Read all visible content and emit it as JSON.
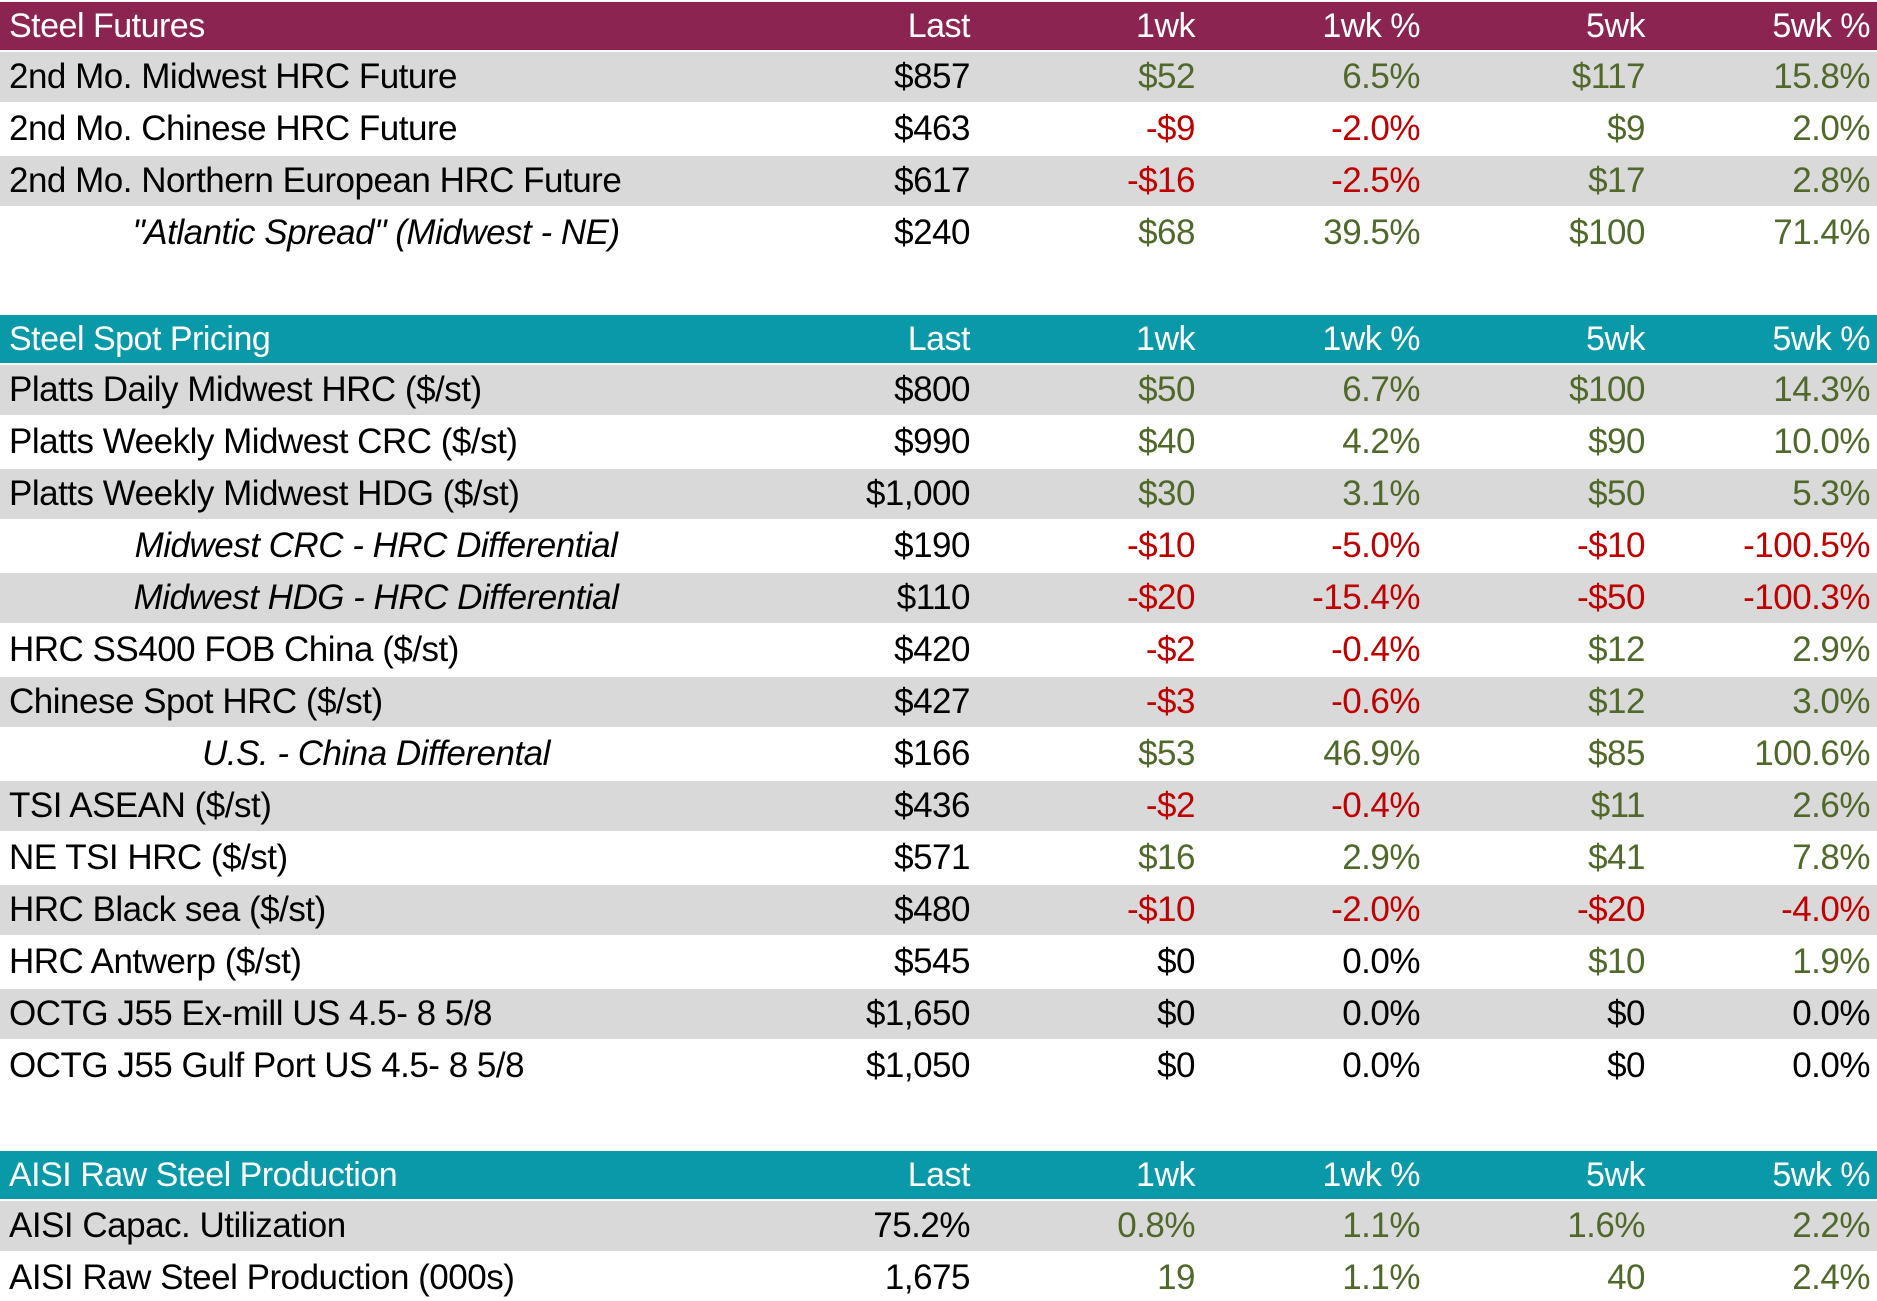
{
  "table": {
    "columns": [
      "Last",
      "1wk",
      "1wk %",
      "5wk",
      "5wk %"
    ],
    "colors": {
      "header_maroon": "#8B2450",
      "header_teal": "#0999A8",
      "stripe_gray": "#D9D9D9",
      "positive_green": "#51682B",
      "negative_red": "#C00000",
      "neutral_black": "#000000"
    },
    "sections": [
      {
        "title": "Steel Futures",
        "theme": "maroon",
        "rows": [
          {
            "label": "2nd Mo. Midwest HRC Future",
            "italic": false,
            "cells": [
              [
                "$857",
                "flat"
              ],
              [
                "$52",
                "pos"
              ],
              [
                "6.5%",
                "pos"
              ],
              [
                "$117",
                "pos"
              ],
              [
                "15.8%",
                "pos"
              ]
            ]
          },
          {
            "label": "2nd Mo. Chinese HRC Future",
            "italic": false,
            "cells": [
              [
                "$463",
                "flat"
              ],
              [
                "-$9",
                "neg"
              ],
              [
                "-2.0%",
                "neg"
              ],
              [
                "$9",
                "pos"
              ],
              [
                "2.0%",
                "pos"
              ]
            ]
          },
          {
            "label": "2nd Mo. Northern European HRC Future",
            "italic": false,
            "cells": [
              [
                "$617",
                "flat"
              ],
              [
                "-$16",
                "neg"
              ],
              [
                "-2.5%",
                "neg"
              ],
              [
                "$17",
                "pos"
              ],
              [
                "2.8%",
                "pos"
              ]
            ]
          },
          {
            "label": "\"Atlantic Spread\" (Midwest - NE)",
            "italic": true,
            "cells": [
              [
                "$240",
                "flat"
              ],
              [
                "$68",
                "pos"
              ],
              [
                "39.5%",
                "pos"
              ],
              [
                "$100",
                "pos"
              ],
              [
                "71.4%",
                "pos"
              ]
            ]
          }
        ]
      },
      {
        "title": "Steel Spot Pricing",
        "theme": "teal",
        "rows": [
          {
            "label": "Platts Daily Midwest HRC ($/st)",
            "italic": false,
            "cells": [
              [
                "$800",
                "flat"
              ],
              [
                "$50",
                "pos"
              ],
              [
                "6.7%",
                "pos"
              ],
              [
                "$100",
                "pos"
              ],
              [
                "14.3%",
                "pos"
              ]
            ]
          },
          {
            "label": "Platts Weekly Midwest CRC ($/st)",
            "italic": false,
            "cells": [
              [
                "$990",
                "flat"
              ],
              [
                "$40",
                "pos"
              ],
              [
                "4.2%",
                "pos"
              ],
              [
                "$90",
                "pos"
              ],
              [
                "10.0%",
                "pos"
              ]
            ]
          },
          {
            "label": "Platts Weekly Midwest HDG ($/st)",
            "italic": false,
            "cells": [
              [
                "$1,000",
                "flat"
              ],
              [
                "$30",
                "pos"
              ],
              [
                "3.1%",
                "pos"
              ],
              [
                "$50",
                "pos"
              ],
              [
                "5.3%",
                "pos"
              ]
            ]
          },
          {
            "label": "Midwest CRC - HRC Differential",
            "italic": true,
            "cells": [
              [
                "$190",
                "flat"
              ],
              [
                "-$10",
                "neg"
              ],
              [
                "-5.0%",
                "neg"
              ],
              [
                "-$10",
                "neg"
              ],
              [
                "-100.5%",
                "neg"
              ]
            ]
          },
          {
            "label": "Midwest HDG - HRC Differential",
            "italic": true,
            "cells": [
              [
                "$110",
                "flat"
              ],
              [
                "-$20",
                "neg"
              ],
              [
                "-15.4%",
                "neg"
              ],
              [
                "-$50",
                "neg"
              ],
              [
                "-100.3%",
                "neg"
              ]
            ]
          },
          {
            "label": "HRC SS400 FOB China ($/st)",
            "italic": false,
            "cells": [
              [
                "$420",
                "flat"
              ],
              [
                "-$2",
                "neg"
              ],
              [
                "-0.4%",
                "neg"
              ],
              [
                "$12",
                "pos"
              ],
              [
                "2.9%",
                "pos"
              ]
            ]
          },
          {
            "label": "Chinese Spot HRC ($/st)",
            "italic": false,
            "cells": [
              [
                "$427",
                "flat"
              ],
              [
                "-$3",
                "neg"
              ],
              [
                "-0.6%",
                "neg"
              ],
              [
                "$12",
                "pos"
              ],
              [
                "3.0%",
                "pos"
              ]
            ]
          },
          {
            "label": "U.S. - China Differental",
            "italic": true,
            "cells": [
              [
                "$166",
                "flat"
              ],
              [
                "$53",
                "pos"
              ],
              [
                "46.9%",
                "pos"
              ],
              [
                "$85",
                "pos"
              ],
              [
                "100.6%",
                "pos"
              ]
            ]
          },
          {
            "label": "TSI ASEAN ($/st)",
            "italic": false,
            "cells": [
              [
                "$436",
                "flat"
              ],
              [
                "-$2",
                "neg"
              ],
              [
                "-0.4%",
                "neg"
              ],
              [
                "$11",
                "pos"
              ],
              [
                "2.6%",
                "pos"
              ]
            ]
          },
          {
            "label": "NE TSI HRC ($/st)",
            "italic": false,
            "cells": [
              [
                "$571",
                "flat"
              ],
              [
                "$16",
                "pos"
              ],
              [
                "2.9%",
                "pos"
              ],
              [
                "$41",
                "pos"
              ],
              [
                "7.8%",
                "pos"
              ]
            ]
          },
          {
            "label": "HRC Black sea ($/st)",
            "italic": false,
            "cells": [
              [
                "$480",
                "flat"
              ],
              [
                "-$10",
                "neg"
              ],
              [
                "-2.0%",
                "neg"
              ],
              [
                "-$20",
                "neg"
              ],
              [
                "-4.0%",
                "neg"
              ]
            ]
          },
          {
            "label": "HRC Antwerp ($/st)",
            "italic": false,
            "cells": [
              [
                "$545",
                "flat"
              ],
              [
                "$0",
                "flat"
              ],
              [
                "0.0%",
                "flat"
              ],
              [
                "$10",
                "pos"
              ],
              [
                "1.9%",
                "pos"
              ]
            ]
          },
          {
            "label": "OCTG J55 Ex-mill US 4.5- 8 5/8",
            "italic": false,
            "cells": [
              [
                "$1,650",
                "flat"
              ],
              [
                "$0",
                "flat"
              ],
              [
                "0.0%",
                "flat"
              ],
              [
                "$0",
                "flat"
              ],
              [
                "0.0%",
                "flat"
              ]
            ]
          },
          {
            "label": "OCTG J55 Gulf Port US 4.5- 8 5/8",
            "italic": false,
            "cells": [
              [
                "$1,050",
                "flat"
              ],
              [
                "$0",
                "flat"
              ],
              [
                "0.0%",
                "flat"
              ],
              [
                "$0",
                "flat"
              ],
              [
                "0.0%",
                "flat"
              ]
            ]
          }
        ]
      },
      {
        "title": "AISI Raw Steel Production",
        "theme": "teal",
        "rows": [
          {
            "label": "AISI Capac. Utilization",
            "italic": false,
            "cells": [
              [
                "75.2%",
                "flat"
              ],
              [
                "0.8%",
                "pos"
              ],
              [
                "1.1%",
                "pos"
              ],
              [
                "1.6%",
                "pos"
              ],
              [
                "2.2%",
                "pos"
              ]
            ]
          },
          {
            "label": "AISI Raw Steel Production (000s)",
            "italic": false,
            "cells": [
              [
                "1,675",
                "flat"
              ],
              [
                "19",
                "pos"
              ],
              [
                "1.1%",
                "pos"
              ],
              [
                "40",
                "pos"
              ],
              [
                "2.4%",
                "pos"
              ]
            ]
          }
        ]
      }
    ]
  }
}
